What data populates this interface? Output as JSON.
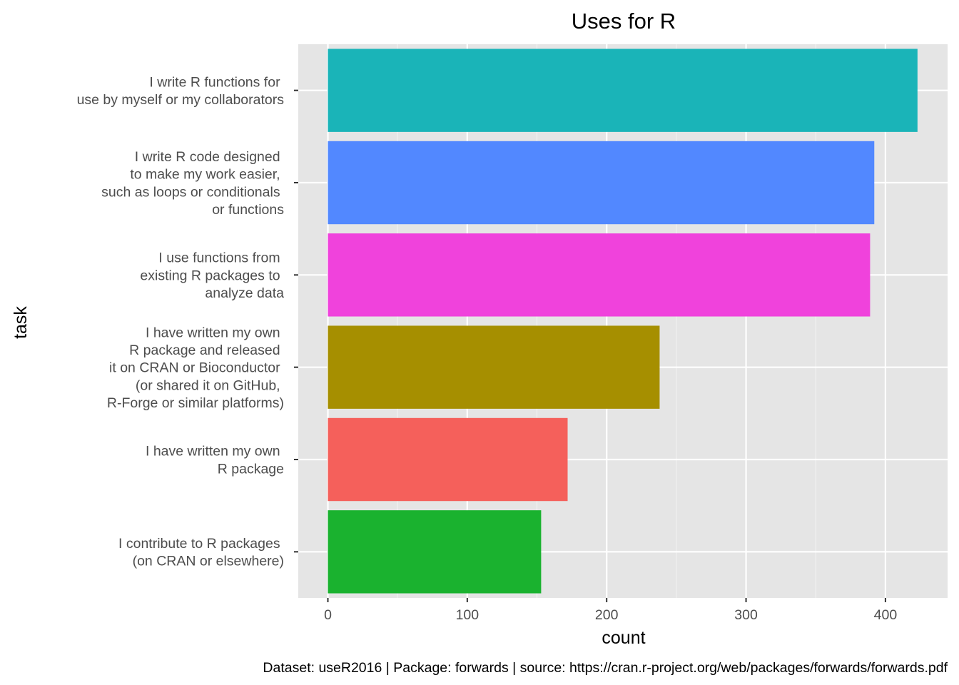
{
  "chart_data": {
    "type": "bar",
    "orientation": "horizontal",
    "title": "Uses for R",
    "xlabel": "count",
    "ylabel": "task",
    "caption": "Dataset: useR2016 | Package: forwards | source: https://cran.r-project.org/web/packages/forwards/forwards.pdf",
    "xlim": [
      0,
      440
    ],
    "xticks": [
      "0",
      "100",
      "200",
      "300",
      "400"
    ],
    "grid": true,
    "legend": "none",
    "panel_background": "#e5e5e5",
    "categories": [
      "I write R functions for \nuse by myself or my collaborators",
      "I write R code designed \nto make my work easier, \nsuch as loops or conditionals \nor functions",
      "I use functions from \nexisting R packages to \nanalyze data",
      "I have written my own \nR package and released \nit on CRAN or Bioconductor \n(or shared it on GitHub, \nR-Forge or similar platforms)",
      "I have written my own \nR package",
      "I contribute to R packages \n(on CRAN or elsewhere)"
    ],
    "values": [
      423,
      392,
      389,
      238,
      172,
      153
    ],
    "colors": [
      "#1ab4b8",
      "#5288ff",
      "#f042dc",
      "#a68f00",
      "#f5605b",
      "#1ab22f"
    ]
  }
}
